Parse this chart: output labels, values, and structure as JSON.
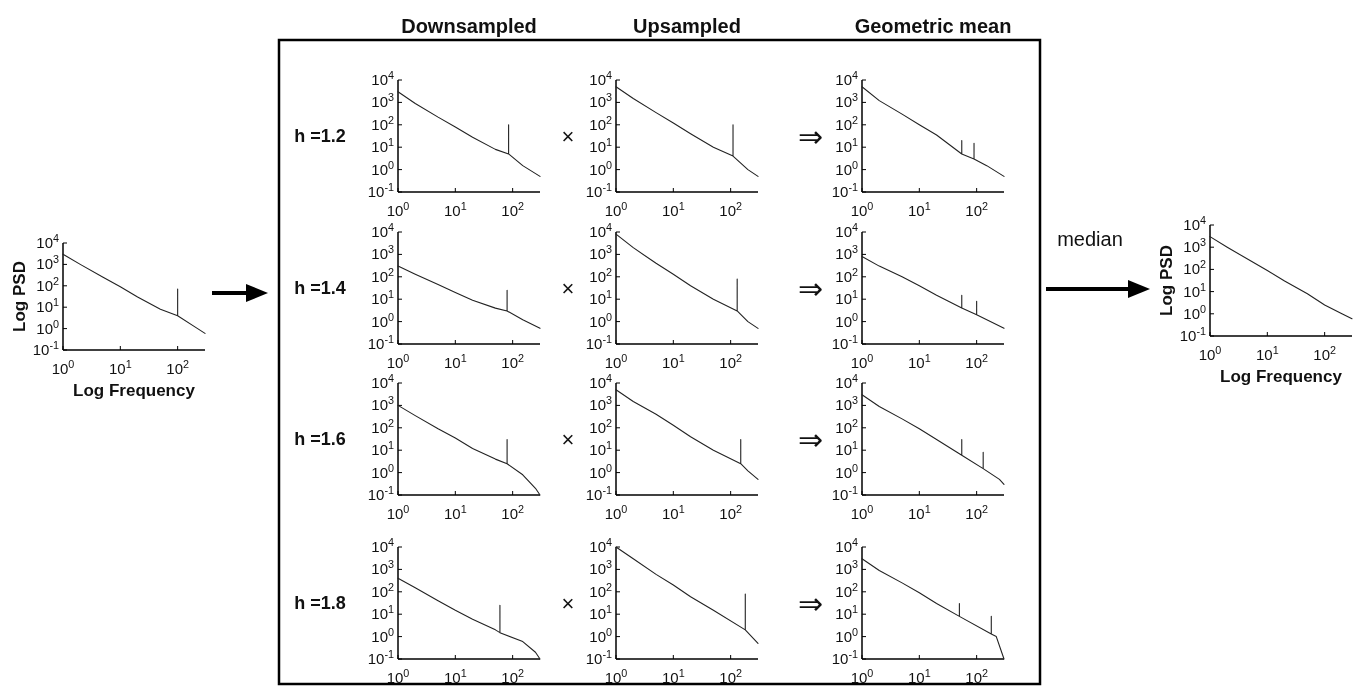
{
  "chart_data": [
    {
      "type": "line",
      "xlabel": "Log Frequency",
      "ylabel": "Log PSD",
      "log": "xy",
      "xlim": [
        1,
        300
      ],
      "ylim": [
        0.1,
        10000
      ],
      "xticks": [
        {
          "value": 1,
          "label": "10$^{0}$"
        },
        {
          "value": 10,
          "label": "10$^{1}$"
        },
        {
          "value": 100,
          "label": "10$^{2}$"
        }
      ],
      "yticks": [
        {
          "value": 0.1,
          "label": "10$^{-1}$"
        },
        {
          "value": 1,
          "label": "10$^{0}$"
        },
        {
          "value": 10,
          "label": "10$^{1}$"
        },
        {
          "value": 100,
          "label": "10$^{2}$"
        },
        {
          "value": 1000,
          "label": "10$^{3}$"
        },
        {
          "value": 10000,
          "label": "10$^{4}$"
        }
      ],
      "x": [
        1,
        2,
        5,
        10,
        20,
        50,
        100,
        100,
        100,
        200,
        300
      ],
      "series": [
        {
          "color": "#222222",
          "values": [
            3000,
            1000,
            250,
            90,
            30,
            8,
            4,
            70,
            4,
            1.2,
            0.6
          ]
        }
      ]
    },
    {
      "type": "line",
      "title": "Downsampled",
      "annotations": [
        "h =1.2"
      ],
      "log": "xy",
      "xlim": [
        1,
        300
      ],
      "ylim": [
        0.1,
        10000
      ],
      "xticks": [
        {
          "value": 1,
          "label": "10$^{0}$"
        },
        {
          "value": 10,
          "label": "10$^{1}$"
        },
        {
          "value": 100,
          "label": "10$^{2}$"
        }
      ],
      "yticks": [
        {
          "value": 0.1,
          "label": "10$^{-1}$"
        },
        {
          "value": 1,
          "label": "10$^{0}$"
        },
        {
          "value": 10,
          "label": "10$^{1}$"
        },
        {
          "value": 100,
          "label": "10$^{2}$"
        },
        {
          "value": 1000,
          "label": "10$^{3}$"
        },
        {
          "value": 10000,
          "label": "10$^{4}$"
        }
      ],
      "x": [
        1,
        2,
        5,
        10,
        20,
        50,
        85,
        85,
        85,
        150,
        300
      ],
      "series": [
        {
          "color": "#222222",
          "values": [
            3000,
            900,
            220,
            80,
            28,
            8,
            5,
            100,
            5,
            1.5,
            0.5
          ]
        }
      ]
    },
    {
      "type": "line",
      "title": "Upsampled",
      "annotations": [
        "×"
      ],
      "log": "xy",
      "xlim": [
        1,
        300
      ],
      "ylim": [
        0.1,
        10000
      ],
      "xticks": [
        {
          "value": 1,
          "label": "10$^{0}$"
        },
        {
          "value": 10,
          "label": "10$^{1}$"
        },
        {
          "value": 100,
          "label": "10$^{2}$"
        }
      ],
      "yticks": [
        {
          "value": 0.1,
          "label": "10$^{-1}$"
        },
        {
          "value": 1,
          "label": "10$^{0}$"
        },
        {
          "value": 10,
          "label": "10$^{1}$"
        },
        {
          "value": 100,
          "label": "10$^{2}$"
        },
        {
          "value": 1000,
          "label": "10$^{3}$"
        },
        {
          "value": 10000,
          "label": "10$^{4}$"
        }
      ],
      "x": [
        1,
        2,
        5,
        10,
        20,
        50,
        110,
        110,
        110,
        200,
        300
      ],
      "series": [
        {
          "color": "#222222",
          "values": [
            5000,
            1500,
            350,
            120,
            40,
            10,
            4,
            100,
            4,
            1,
            0.5
          ]
        }
      ]
    },
    {
      "type": "line",
      "title": "Geometric mean",
      "annotations": [
        "⇒"
      ],
      "log": "xy",
      "xlim": [
        1,
        300
      ],
      "ylim": [
        0.1,
        10000
      ],
      "xticks": [
        {
          "value": 1,
          "label": "10$^{0}$"
        },
        {
          "value": 10,
          "label": "10$^{1}$"
        },
        {
          "value": 100,
          "label": "10$^{2}$"
        }
      ],
      "yticks": [
        {
          "value": 0.1,
          "label": "10$^{-1}$"
        },
        {
          "value": 1,
          "label": "10$^{0}$"
        },
        {
          "value": 10,
          "label": "10$^{1}$"
        },
        {
          "value": 100,
          "label": "10$^{2}$"
        },
        {
          "value": 1000,
          "label": "10$^{3}$"
        },
        {
          "value": 10000,
          "label": "10$^{4}$"
        }
      ],
      "x": [
        1,
        2,
        5,
        10,
        20,
        55,
        55,
        55,
        90,
        90,
        90,
        150,
        300
      ],
      "series": [
        {
          "color": "#222222",
          "values": [
            5000,
            1200,
            300,
            100,
            35,
            5,
            20,
            5,
            3,
            15,
            3,
            1.5,
            0.5
          ]
        }
      ]
    },
    {
      "type": "line",
      "annotations": [
        "h =1.4"
      ],
      "log": "xy",
      "xlim": [
        1,
        300
      ],
      "ylim": [
        0.1,
        10000
      ],
      "xticks": [
        {
          "value": 1,
          "label": "10$^{0}$"
        },
        {
          "value": 10,
          "label": "10$^{1}$"
        },
        {
          "value": 100,
          "label": "10$^{2}$"
        }
      ],
      "yticks": [
        {
          "value": 0.1,
          "label": "10$^{-1}$"
        },
        {
          "value": 1,
          "label": "10$^{0}$"
        },
        {
          "value": 10,
          "label": "10$^{1}$"
        },
        {
          "value": 100,
          "label": "10$^{2}$"
        },
        {
          "value": 1000,
          "label": "10$^{3}$"
        },
        {
          "value": 10000,
          "label": "10$^{4}$"
        }
      ],
      "x": [
        1,
        2,
        5,
        10,
        20,
        50,
        80,
        80,
        80,
        150,
        300
      ],
      "series": [
        {
          "color": "#222222",
          "values": [
            300,
            130,
            45,
            20,
            9,
            4,
            3,
            25,
            3,
            1.2,
            0.5
          ]
        }
      ]
    },
    {
      "type": "line",
      "annotations": [
        "×"
      ],
      "log": "xy",
      "xlim": [
        1,
        300
      ],
      "ylim": [
        0.1,
        10000
      ],
      "xticks": [
        {
          "value": 1,
          "label": "10$^{0}$"
        },
        {
          "value": 10,
          "label": "10$^{1}$"
        },
        {
          "value": 100,
          "label": "10$^{2}$"
        }
      ],
      "yticks": [
        {
          "value": 0.1,
          "label": "10$^{-1}$"
        },
        {
          "value": 1,
          "label": "10$^{0}$"
        },
        {
          "value": 10,
          "label": "10$^{1}$"
        },
        {
          "value": 100,
          "label": "10$^{2}$"
        },
        {
          "value": 1000,
          "label": "10$^{3}$"
        },
        {
          "value": 10000,
          "label": "10$^{4}$"
        }
      ],
      "x": [
        1,
        2,
        5,
        10,
        20,
        50,
        130,
        130,
        130,
        200,
        300
      ],
      "series": [
        {
          "color": "#222222",
          "values": [
            8000,
            2000,
            400,
            130,
            40,
            10,
            3,
            80,
            3,
            1,
            0.5
          ]
        }
      ]
    },
    {
      "type": "line",
      "annotations": [
        "⇒"
      ],
      "log": "xy",
      "xlim": [
        1,
        300
      ],
      "ylim": [
        0.1,
        10000
      ],
      "xticks": [
        {
          "value": 1,
          "label": "10$^{0}$"
        },
        {
          "value": 10,
          "label": "10$^{1}$"
        },
        {
          "value": 100,
          "label": "10$^{2}$"
        }
      ],
      "yticks": [
        {
          "value": 0.1,
          "label": "10$^{-1}$"
        },
        {
          "value": 1,
          "label": "10$^{0}$"
        },
        {
          "value": 10,
          "label": "10$^{1}$"
        },
        {
          "value": 100,
          "label": "10$^{2}$"
        },
        {
          "value": 1000,
          "label": "10$^{3}$"
        },
        {
          "value": 10000,
          "label": "10$^{4}$"
        }
      ],
      "x": [
        1,
        2,
        5,
        10,
        20,
        55,
        55,
        55,
        100,
        100,
        100,
        300
      ],
      "series": [
        {
          "color": "#222222",
          "values": [
            800,
            300,
            100,
            40,
            15,
            4,
            15,
            4,
            2,
            8,
            2,
            0.5
          ]
        }
      ]
    },
    {
      "type": "line",
      "annotations": [
        "h =1.6"
      ],
      "log": "xy",
      "xlim": [
        1,
        300
      ],
      "ylim": [
        0.1,
        10000
      ],
      "xticks": [
        {
          "value": 1,
          "label": "10$^{0}$"
        },
        {
          "value": 10,
          "label": "10$^{1}$"
        },
        {
          "value": 100,
          "label": "10$^{2}$"
        }
      ],
      "yticks": [
        {
          "value": 0.1,
          "label": "10$^{-1}$"
        },
        {
          "value": 1,
          "label": "10$^{0}$"
        },
        {
          "value": 10,
          "label": "10$^{1}$"
        },
        {
          "value": 100,
          "label": "10$^{2}$"
        },
        {
          "value": 1000,
          "label": "10$^{3}$"
        },
        {
          "value": 10000,
          "label": "10$^{4}$"
        }
      ],
      "x": [
        1,
        2,
        5,
        10,
        20,
        50,
        80,
        80,
        80,
        150,
        250,
        300
      ],
      "series": [
        {
          "color": "#222222",
          "values": [
            1000,
            350,
            90,
            35,
            12,
            4,
            2.5,
            30,
            2.5,
            0.8,
            0.2,
            0.1
          ]
        }
      ]
    },
    {
      "type": "line",
      "annotations": [
        "×"
      ],
      "log": "xy",
      "xlim": [
        1,
        300
      ],
      "ylim": [
        0.1,
        10000
      ],
      "xticks": [
        {
          "value": 1,
          "label": "10$^{0}$"
        },
        {
          "value": 10,
          "label": "10$^{1}$"
        },
        {
          "value": 100,
          "label": "10$^{2}$"
        }
      ],
      "yticks": [
        {
          "value": 0.1,
          "label": "10$^{-1}$"
        },
        {
          "value": 1,
          "label": "10$^{0}$"
        },
        {
          "value": 10,
          "label": "10$^{1}$"
        },
        {
          "value": 100,
          "label": "10$^{2}$"
        },
        {
          "value": 1000,
          "label": "10$^{3}$"
        },
        {
          "value": 10000,
          "label": "10$^{4}$"
        }
      ],
      "x": [
        1,
        2,
        5,
        10,
        20,
        50,
        150,
        150,
        150,
        200,
        300
      ],
      "series": [
        {
          "color": "#222222",
          "values": [
            5000,
            1500,
            400,
            130,
            40,
            10,
            2.5,
            30,
            2.5,
            1.2,
            0.5
          ]
        }
      ]
    },
    {
      "type": "line",
      "annotations": [
        "⇒"
      ],
      "log": "xy",
      "xlim": [
        1,
        300
      ],
      "ylim": [
        0.1,
        10000
      ],
      "xticks": [
        {
          "value": 1,
          "label": "10$^{0}$"
        },
        {
          "value": 10,
          "label": "10$^{1}$"
        },
        {
          "value": 100,
          "label": "10$^{2}$"
        }
      ],
      "yticks": [
        {
          "value": 0.1,
          "label": "10$^{-1}$"
        },
        {
          "value": 1,
          "label": "10$^{0}$"
        },
        {
          "value": 10,
          "label": "10$^{1}$"
        },
        {
          "value": 100,
          "label": "10$^{2}$"
        },
        {
          "value": 1000,
          "label": "10$^{3}$"
        },
        {
          "value": 10000,
          "label": "10$^{4}$"
        }
      ],
      "x": [
        1,
        2,
        5,
        10,
        20,
        55,
        55,
        55,
        130,
        130,
        130,
        250,
        300
      ],
      "series": [
        {
          "color": "#222222",
          "values": [
            3000,
            900,
            250,
            90,
            30,
            6,
            30,
            6,
            1.5,
            8,
            1.5,
            0.5,
            0.3
          ]
        }
      ]
    },
    {
      "type": "line",
      "annotations": [
        "h =1.8"
      ],
      "log": "xy",
      "xlim": [
        1,
        300
      ],
      "ylim": [
        0.1,
        10000
      ],
      "xticks": [
        {
          "value": 1,
          "label": "10$^{0}$"
        },
        {
          "value": 10,
          "label": "10$^{1}$"
        },
        {
          "value": 100,
          "label": "10$^{2}$"
        }
      ],
      "yticks": [
        {
          "value": 0.1,
          "label": "10$^{-1}$"
        },
        {
          "value": 1,
          "label": "10$^{0}$"
        },
        {
          "value": 10,
          "label": "10$^{1}$"
        },
        {
          "value": 100,
          "label": "10$^{2}$"
        },
        {
          "value": 1000,
          "label": "10$^{3}$"
        },
        {
          "value": 10000,
          "label": "10$^{4}$"
        }
      ],
      "x": [
        1,
        2,
        5,
        10,
        20,
        50,
        60,
        60,
        60,
        150,
        250,
        300
      ],
      "series": [
        {
          "color": "#222222",
          "values": [
            400,
            150,
            40,
            15,
            6,
            2,
            1.5,
            25,
            1.5,
            0.6,
            0.2,
            0.1
          ]
        }
      ]
    },
    {
      "type": "line",
      "annotations": [
        "×"
      ],
      "log": "xy",
      "xlim": [
        1,
        300
      ],
      "ylim": [
        0.1,
        10000
      ],
      "xticks": [
        {
          "value": 1,
          "label": "10$^{0}$"
        },
        {
          "value": 10,
          "label": "10$^{1}$"
        },
        {
          "value": 100,
          "label": "10$^{2}$"
        }
      ],
      "yticks": [
        {
          "value": 0.1,
          "label": "10$^{-1}$"
        },
        {
          "value": 1,
          "label": "10$^{0}$"
        },
        {
          "value": 10,
          "label": "10$^{1}$"
        },
        {
          "value": 100,
          "label": "10$^{2}$"
        },
        {
          "value": 1000,
          "label": "10$^{3}$"
        },
        {
          "value": 10000,
          "label": "10$^{4}$"
        }
      ],
      "x": [
        1,
        2,
        5,
        10,
        20,
        50,
        180,
        180,
        180,
        300
      ],
      "series": [
        {
          "color": "#222222",
          "values": [
            10000,
            3000,
            600,
            200,
            60,
            15,
            2,
            80,
            2,
            0.5
          ]
        }
      ]
    },
    {
      "type": "line",
      "annotations": [
        "⇒"
      ],
      "log": "xy",
      "xlim": [
        1,
        300
      ],
      "ylim": [
        0.1,
        10000
      ],
      "xticks": [
        {
          "value": 1,
          "label": "10$^{0}$"
        },
        {
          "value": 10,
          "label": "10$^{1}$"
        },
        {
          "value": 100,
          "label": "10$^{2}$"
        }
      ],
      "yticks": [
        {
          "value": 0.1,
          "label": "10$^{-1}$"
        },
        {
          "value": 1,
          "label": "10$^{0}$"
        },
        {
          "value": 10,
          "label": "10$^{1}$"
        },
        {
          "value": 100,
          "label": "10$^{2}$"
        },
        {
          "value": 1000,
          "label": "10$^{3}$"
        },
        {
          "value": 10000,
          "label": "10$^{4}$"
        }
      ],
      "x": [
        1,
        2,
        5,
        10,
        20,
        50,
        50,
        50,
        180,
        180,
        180,
        220,
        300
      ],
      "series": [
        {
          "color": "#222222",
          "values": [
            3000,
            900,
            250,
            90,
            30,
            8,
            30,
            8,
            1.3,
            8,
            1.3,
            1,
            0.1
          ]
        }
      ]
    },
    {
      "type": "line",
      "xlabel": "Log Frequency",
      "ylabel": "Log PSD",
      "annotations": [
        "median"
      ],
      "log": "xy",
      "xlim": [
        1,
        300
      ],
      "ylim": [
        0.1,
        10000
      ],
      "xticks": [
        {
          "value": 1,
          "label": "10$^{0}$"
        },
        {
          "value": 10,
          "label": "10$^{1}$"
        },
        {
          "value": 100,
          "label": "10$^{2}$"
        }
      ],
      "yticks": [
        {
          "value": 0.1,
          "label": "10$^{-1}$"
        },
        {
          "value": 1,
          "label": "10$^{0}$"
        },
        {
          "value": 10,
          "label": "10$^{1}$"
        },
        {
          "value": 100,
          "label": "10$^{2}$"
        },
        {
          "value": 1000,
          "label": "10$^{3}$"
        },
        {
          "value": 10000,
          "label": "10$^{4}$"
        }
      ],
      "x": [
        1,
        2,
        5,
        10,
        20,
        50,
        100,
        200,
        300
      ],
      "series": [
        {
          "color": "#222222",
          "values": [
            3000,
            1000,
            250,
            90,
            30,
            8,
            2.5,
            1,
            0.6
          ]
        }
      ]
    }
  ]
}
